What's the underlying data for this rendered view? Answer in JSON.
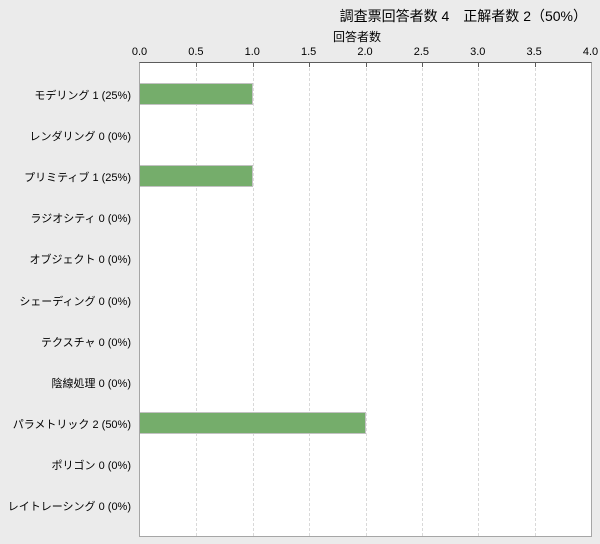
{
  "header": {
    "title": "調査票回答者数 4　正解者数 2（50%）",
    "respondents": 4,
    "correct": 2,
    "correct_percent": "50%"
  },
  "chart_data": {
    "type": "bar",
    "orientation": "horizontal",
    "title": "調査票回答者数 4　正解者数 2（50%）",
    "xlabel": "回答者数",
    "ylabel": "",
    "categories": [
      "モデリング",
      "レンダリング",
      "プリミティブ",
      "ラジオシティ",
      "オブジェクト",
      "シェーディング",
      "テクスチャ",
      "陰線処理",
      "パラメトリック",
      "ポリゴン",
      "レイトレーシング"
    ],
    "category_labels": [
      "モデリング 1 (25%)",
      "レンダリング 0 (0%)",
      "プリミティブ 1 (25%)",
      "ラジオシティ 0 (0%)",
      "オブジェクト 0 (0%)",
      "シェーディング 0 (0%)",
      "テクスチャ 0 (0%)",
      "陰線処理 0 (0%)",
      "パラメトリック 2 (50%)",
      "ポリゴン 0 (0%)",
      "レイトレーシング 0 (0%)"
    ],
    "values": [
      1,
      0,
      1,
      0,
      0,
      0,
      0,
      0,
      2,
      0,
      0
    ],
    "percents": [
      "25%",
      "0%",
      "25%",
      "0%",
      "0%",
      "0%",
      "0%",
      "0%",
      "50%",
      "0%",
      "0%"
    ],
    "xlim": [
      0,
      4
    ],
    "xtick_labels": [
      "0.0",
      "0.5",
      "1.0",
      "1.5",
      "2.0",
      "2.5",
      "3.0",
      "3.5",
      "4.0"
    ],
    "grid": "vertical-dashed",
    "legend": "none",
    "colors": {
      "bar_fill": "#75ad6b",
      "bar_border": "#c2c2c2",
      "background": "#ebebeb",
      "plot_background": "#ffffff",
      "plot_border": "#a6a6a6",
      "axis_line": "#5c5c5c",
      "gridline": "#d9d9d9",
      "text": "#000000"
    }
  }
}
